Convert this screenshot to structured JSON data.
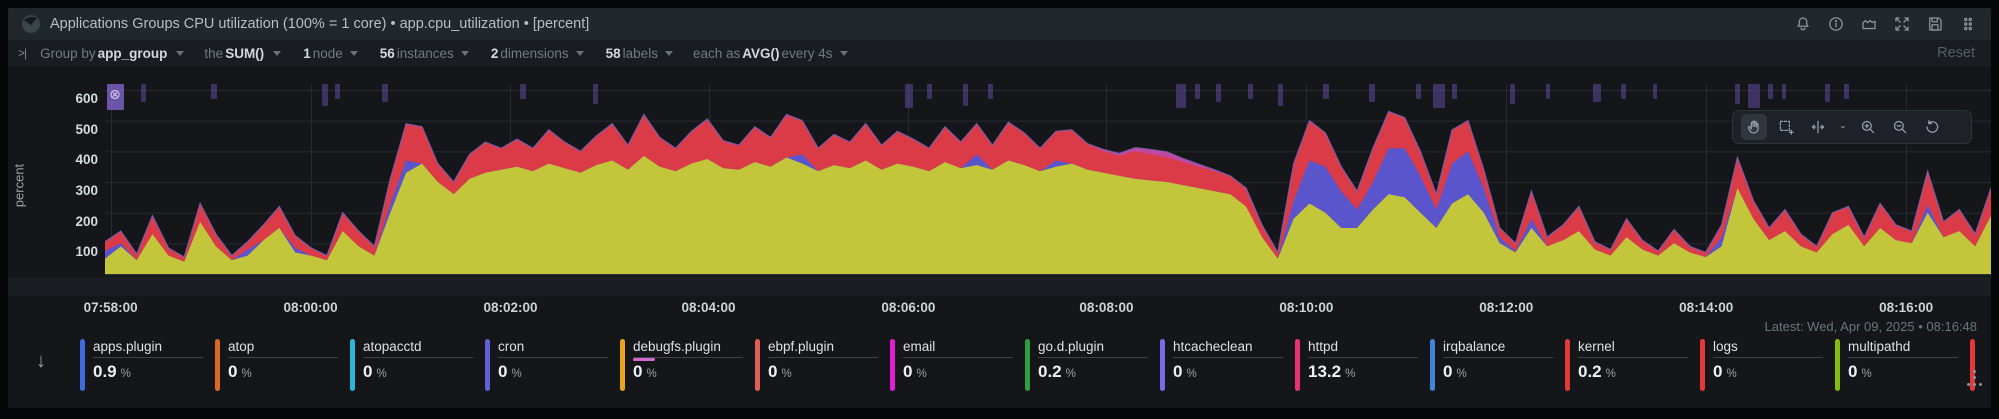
{
  "header": {
    "title": "Applications Groups CPU utilization (100% = 1 core) • app.cpu_utilization • [percent]",
    "icons": [
      "alerts-bell-icon",
      "info-icon",
      "chart-type-icon",
      "fullscreen-icon",
      "save-icon",
      "drag-handle-icon"
    ]
  },
  "toolbar": {
    "collapse_glyph": ">|",
    "segments": [
      {
        "name": "group-by",
        "pre": "Group by ",
        "val": "app_group",
        "suf": ""
      },
      {
        "name": "aggregate",
        "pre": "the ",
        "val": "SUM()",
        "suf": ""
      },
      {
        "name": "nodes",
        "pre": "",
        "val": "1",
        "suf": " node"
      },
      {
        "name": "instances",
        "pre": "",
        "val": "56",
        "suf": " instances"
      },
      {
        "name": "dimensions",
        "pre": "",
        "val": "2",
        "suf": " dimensions"
      },
      {
        "name": "labels",
        "pre": "",
        "val": "58",
        "suf": " labels"
      },
      {
        "name": "time-aggregate",
        "pre": "each as ",
        "val": "AVG()",
        "suf": " every 4s"
      }
    ],
    "reset_label": "Reset"
  },
  "plot_toolbar": {
    "icons": [
      "pan-icon",
      "select-area-icon",
      "horizontal-zoom-icon",
      "caret-down-icon",
      "zoom-in-icon",
      "zoom-out-icon",
      "reset-zoom-icon"
    ],
    "active": "pan-icon"
  },
  "footer": {
    "latest": "Latest: Wed, Apr 09, 2025 • 08:16:48"
  },
  "chart_data": {
    "type": "area",
    "stacked": true,
    "title": "Applications Groups CPU utilization (100% = 1 core)",
    "xlabel": "",
    "ylabel": "percent",
    "ylim": [
      0,
      620
    ],
    "yticks": [
      0,
      100,
      200,
      300,
      400,
      500,
      600
    ],
    "grid": true,
    "legend_position": "bottom",
    "xticks": [
      {
        "label": "07:58:00",
        "f": 0.003
      },
      {
        "label": "08:00:00",
        "f": 0.109
      },
      {
        "label": "08:02:00",
        "f": 0.215
      },
      {
        "label": "08:04:00",
        "f": 0.32
      },
      {
        "label": "08:06:00",
        "f": 0.426
      },
      {
        "label": "08:08:00",
        "f": 0.531
      },
      {
        "label": "08:10:00",
        "f": 0.637
      },
      {
        "label": "08:12:00",
        "f": 0.743
      },
      {
        "label": "08:14:00",
        "f": 0.849
      },
      {
        "label": "08:16:00",
        "f": 0.955
      }
    ],
    "top_edge_color": "#7e5fae",
    "series": [
      {
        "name": "series-yellow",
        "color": "#c3c63a",
        "values": [
          50,
          90,
          45,
          130,
          60,
          40,
          170,
          90,
          45,
          60,
          110,
          150,
          70,
          60,
          45,
          140,
          90,
          60,
          200,
          330,
          360,
          300,
          260,
          310,
          330,
          340,
          350,
          335,
          360,
          345,
          330,
          355,
          370,
          340,
          385,
          350,
          335,
          360,
          375,
          345,
          340,
          365,
          350,
          380,
          360,
          335,
          355,
          345,
          370,
          340,
          360,
          350,
          335,
          365,
          345,
          355,
          340,
          370,
          355,
          335,
          350,
          360,
          340,
          330,
          320,
          310,
          305,
          300,
          290,
          280,
          270,
          260,
          220,
          120,
          50,
          180,
          230,
          200,
          150,
          150,
          210,
          260,
          250,
          200,
          150,
          230,
          260,
          200,
          100,
          70,
          150,
          90,
          110,
          140,
          80,
          60,
          120,
          80,
          60,
          100,
          70,
          55,
          90,
          280,
          180,
          110,
          140,
          90,
          70,
          130,
          160,
          90,
          150,
          110,
          100,
          200,
          120,
          140,
          90,
          190
        ]
      },
      {
        "name": "series-blue",
        "color": "#5a55cc",
        "values": [
          25,
          10,
          0,
          0,
          0,
          0,
          0,
          0,
          0,
          20,
          0,
          0,
          15,
          0,
          0,
          0,
          0,
          0,
          30,
          40,
          0,
          0,
          0,
          0,
          0,
          0,
          0,
          0,
          0,
          0,
          0,
          0,
          0,
          0,
          0,
          0,
          0,
          0,
          0,
          0,
          0,
          0,
          0,
          0,
          30,
          0,
          0,
          0,
          0,
          0,
          0,
          0,
          0,
          0,
          0,
          35,
          0,
          0,
          0,
          0,
          20,
          0,
          0,
          0,
          0,
          0,
          0,
          0,
          0,
          0,
          0,
          0,
          0,
          0,
          0,
          60,
          140,
          150,
          120,
          60,
          90,
          150,
          160,
          120,
          60,
          130,
          140,
          80,
          20,
          5,
          30,
          0,
          0,
          0,
          0,
          0,
          0,
          0,
          0,
          0,
          0,
          0,
          30,
          0,
          0,
          0,
          0,
          0,
          0,
          0,
          0,
          0,
          0,
          0,
          0,
          25,
          0,
          0,
          0,
          0
        ]
      },
      {
        "name": "series-red",
        "color": "#da3b47",
        "values": [
          30,
          40,
          20,
          60,
          25,
          15,
          60,
          40,
          15,
          25,
          50,
          70,
          40,
          25,
          15,
          60,
          50,
          30,
          80,
          120,
          120,
          60,
          40,
          80,
          100,
          70,
          90,
          75,
          110,
          85,
          70,
          95,
          120,
          80,
          135,
          95,
          75,
          105,
          130,
          90,
          80,
          115,
          95,
          140,
          110,
          75,
          100,
          85,
          120,
          80,
          105,
          90,
          75,
          115,
          85,
          100,
          80,
          125,
          105,
          75,
          95,
          110,
          85,
          70,
          65,
          90,
          85,
          80,
          75,
          70,
          65,
          60,
          60,
          40,
          20,
          120,
          130,
          110,
          80,
          60,
          110,
          120,
          100,
          80,
          50,
          110,
          100,
          60,
          30,
          25,
          90,
          30,
          50,
          80,
          25,
          20,
          60,
          30,
          15,
          45,
          20,
          15,
          40,
          100,
          60,
          40,
          70,
          40,
          20,
          70,
          60,
          30,
          80,
          50,
          40,
          110,
          50,
          70,
          40,
          90
        ]
      },
      {
        "name": "series-pink",
        "color": "#c2479e",
        "values": [
          0,
          0,
          0,
          0,
          0,
          0,
          0,
          0,
          0,
          0,
          0,
          0,
          0,
          0,
          0,
          0,
          0,
          0,
          0,
          0,
          0,
          0,
          0,
          0,
          0,
          0,
          0,
          0,
          0,
          0,
          0,
          0,
          0,
          0,
          0,
          0,
          0,
          0,
          0,
          0,
          0,
          0,
          0,
          0,
          0,
          0,
          0,
          0,
          0,
          0,
          0,
          0,
          0,
          0,
          0,
          0,
          0,
          0,
          0,
          0,
          0,
          0,
          0,
          6,
          8,
          12,
          16,
          18,
          12,
          8,
          5,
          0,
          0,
          0,
          0,
          0,
          0,
          0,
          0,
          0,
          0,
          0,
          0,
          0,
          0,
          0,
          0,
          0,
          0,
          0,
          0,
          0,
          0,
          0,
          0,
          0,
          0,
          0,
          0,
          0,
          0,
          0,
          0,
          0,
          0,
          0,
          0,
          0,
          0,
          0,
          0,
          0,
          0,
          0,
          0,
          0,
          0,
          0,
          0,
          0
        ]
      }
    ]
  },
  "annotations": {
    "bars": [
      {
        "f": 0.001,
        "w": 17,
        "h": 26,
        "hl": true
      },
      {
        "f": 0.019,
        "w": 5,
        "h": 18
      },
      {
        "f": 0.056,
        "w": 6,
        "h": 15
      },
      {
        "f": 0.115,
        "w": 6,
        "h": 22
      },
      {
        "f": 0.122,
        "w": 5,
        "h": 15
      },
      {
        "f": 0.147,
        "w": 6,
        "h": 18
      },
      {
        "f": 0.22,
        "w": 6,
        "h": 15
      },
      {
        "f": 0.259,
        "w": 5,
        "h": 20
      },
      {
        "f": 0.424,
        "w": 8,
        "h": 24
      },
      {
        "f": 0.436,
        "w": 5,
        "h": 15
      },
      {
        "f": 0.455,
        "w": 5,
        "h": 22
      },
      {
        "f": 0.468,
        "w": 5,
        "h": 15
      },
      {
        "f": 0.568,
        "w": 10,
        "h": 24
      },
      {
        "f": 0.578,
        "w": 5,
        "h": 15
      },
      {
        "f": 0.589,
        "w": 5,
        "h": 18
      },
      {
        "f": 0.606,
        "w": 5,
        "h": 15
      },
      {
        "f": 0.622,
        "w": 5,
        "h": 22
      },
      {
        "f": 0.646,
        "w": 6,
        "h": 15
      },
      {
        "f": 0.67,
        "w": 6,
        "h": 18
      },
      {
        "f": 0.695,
        "w": 5,
        "h": 15
      },
      {
        "f": 0.704,
        "w": 12,
        "h": 24
      },
      {
        "f": 0.714,
        "w": 5,
        "h": 15
      },
      {
        "f": 0.745,
        "w": 5,
        "h": 20
      },
      {
        "f": 0.764,
        "w": 4,
        "h": 15
      },
      {
        "f": 0.789,
        "w": 8,
        "h": 18
      },
      {
        "f": 0.804,
        "w": 5,
        "h": 15
      },
      {
        "f": 0.821,
        "w": 4,
        "h": 15
      },
      {
        "f": 0.864,
        "w": 5,
        "h": 20
      },
      {
        "f": 0.871,
        "w": 12,
        "h": 24
      },
      {
        "f": 0.882,
        "w": 5,
        "h": 15
      },
      {
        "f": 0.889,
        "w": 4,
        "h": 15
      },
      {
        "f": 0.912,
        "w": 5,
        "h": 18
      },
      {
        "f": 0.922,
        "w": 5,
        "h": 15
      }
    ]
  },
  "legend": {
    "sort_glyph": "↓",
    "items": [
      {
        "name": "apps.plugin",
        "value": "0.9",
        "unit": "%",
        "color": "#3b6be0"
      },
      {
        "name": "atop",
        "value": "0",
        "unit": "%",
        "color": "#d96a1f"
      },
      {
        "name": "atopacctd",
        "value": "0",
        "unit": "%",
        "color": "#29b6d8"
      },
      {
        "name": "cron",
        "value": "0",
        "unit": "%",
        "color": "#6061d8"
      },
      {
        "name": "debugfs.plugin",
        "value": "0",
        "unit": "%",
        "color": "#e8a21d",
        "anomaly": true
      },
      {
        "name": "ebpf.plugin",
        "value": "0",
        "unit": "%",
        "color": "#e06055"
      },
      {
        "name": "email",
        "value": "0",
        "unit": "%",
        "color": "#df1fd8"
      },
      {
        "name": "go.d.plugin",
        "value": "0.2",
        "unit": "%",
        "color": "#2f9e3f"
      },
      {
        "name": "htcacheclean",
        "value": "0",
        "unit": "%",
        "color": "#7d68e8"
      },
      {
        "name": "httpd",
        "value": "13.2",
        "unit": "%",
        "color": "#e83370"
      },
      {
        "name": "irqbalance",
        "value": "0",
        "unit": "%",
        "color": "#3f86d9"
      },
      {
        "name": "kernel",
        "value": "0.2",
        "unit": "%",
        "color": "#e53939"
      },
      {
        "name": "logs",
        "value": "0",
        "unit": "%",
        "color": "#e53939"
      },
      {
        "name": "multipathd",
        "value": "0",
        "unit": "%",
        "color": "#86ba0e"
      },
      {
        "name": "",
        "value": "",
        "unit": "",
        "color": "#e53939",
        "partial": true
      }
    ]
  },
  "colors": {
    "card_bg": "#141619",
    "header_bg": "#22272b",
    "toolbar_bg": "#191c20",
    "grid": "#262a30",
    "axis_text": "#d6dbde",
    "anomaly_bar": "#604a9e"
  }
}
